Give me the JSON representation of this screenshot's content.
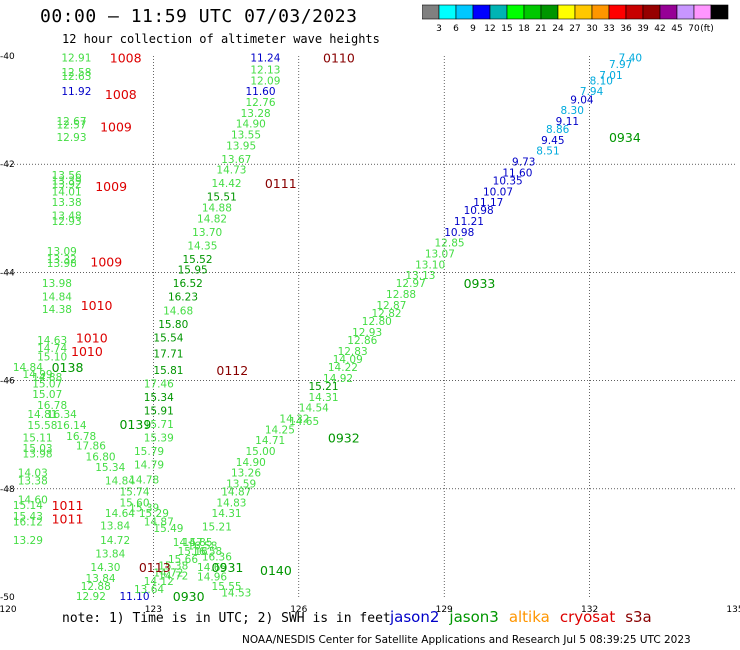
{
  "title": "00:00 – 11:59 UTC 07/03/2023",
  "subtitle": "12 hour collection of altimeter wave heights",
  "colorbar": {
    "colors": [
      "#808080",
      "#00ffff",
      "#00c8ff",
      "#0000ff",
      "#00b4b4",
      "#00ff00",
      "#00c800",
      "#009600",
      "#ffff00",
      "#ffc800",
      "#ff9600",
      "#ff0000",
      "#c80000",
      "#960000",
      "#960096",
      "#c896ff",
      "#ff96ff",
      "#000000"
    ],
    "labels": [
      "3",
      "6",
      "9",
      "12",
      "15",
      "18",
      "21",
      "24",
      "27",
      "30",
      "33",
      "36",
      "39",
      "42",
      "45",
      "70",
      "(ft)"
    ]
  },
  "map": {
    "lon_ticks": [
      120,
      123,
      126,
      129,
      132,
      135
    ],
    "lat_ticks": [
      -40,
      -42,
      -44,
      -46,
      -48,
      -50
    ],
    "lon_range": [
      120,
      135
    ],
    "lat_range": [
      -50,
      -40
    ],
    "grid": true
  },
  "palette": {
    "light": "#44dd44",
    "green": "#009600",
    "blue": "#0000c8",
    "cyan": "#00aadd",
    "red": "#dd0000",
    "maroon": "#880000"
  },
  "time_labels": [
    {
      "text": "1008",
      "lon": 122.1,
      "lat": -40.03,
      "c": "red"
    },
    {
      "text": "1008",
      "lon": 122.0,
      "lat": -40.7,
      "c": "red"
    },
    {
      "text": "1009",
      "lon": 121.9,
      "lat": -41.3,
      "c": "red"
    },
    {
      "text": "1009",
      "lon": 121.8,
      "lat": -42.4,
      "c": "red"
    },
    {
      "text": "1009",
      "lon": 121.7,
      "lat": -43.8,
      "c": "red"
    },
    {
      "text": "1010",
      "lon": 121.5,
      "lat": -44.6,
      "c": "red"
    },
    {
      "text": "1010",
      "lon": 121.4,
      "lat": -45.2,
      "c": "red"
    },
    {
      "text": "1010",
      "lon": 121.3,
      "lat": -45.45,
      "c": "red"
    },
    {
      "text": "1011",
      "lon": 120.9,
      "lat": -48.3,
      "c": "red"
    },
    {
      "text": "1011",
      "lon": 120.9,
      "lat": -48.55,
      "c": "red"
    },
    {
      "text": "0110",
      "lon": 126.5,
      "lat": -40.03,
      "c": "maroon"
    },
    {
      "text": "0111",
      "lon": 125.3,
      "lat": -42.35,
      "c": "maroon"
    },
    {
      "text": "0112",
      "lon": 124.3,
      "lat": -45.8,
      "c": "maroon"
    },
    {
      "text": "0113",
      "lon": 122.7,
      "lat": -49.45,
      "c": "maroon"
    },
    {
      "text": "0138",
      "lon": 120.9,
      "lat": -45.75,
      "c": "green"
    },
    {
      "text": "0139",
      "lon": 122.3,
      "lat": -46.8,
      "c": "green"
    },
    {
      "text": "0140",
      "lon": 125.2,
      "lat": -49.5,
      "c": "green"
    },
    {
      "text": "0931",
      "lon": 124.2,
      "lat": -49.45,
      "c": "green"
    },
    {
      "text": "0930",
      "lon": 123.4,
      "lat": -49.98,
      "c": "green"
    },
    {
      "text": "0932",
      "lon": 126.6,
      "lat": -47.05,
      "c": "green"
    },
    {
      "text": "0933",
      "lon": 129.4,
      "lat": -44.2,
      "c": "green"
    },
    {
      "text": "0934",
      "lon": 132.4,
      "lat": -41.5,
      "c": "green"
    }
  ],
  "swh_labels": [
    {
      "text": "12.91",
      "lon": 121.1,
      "lat": -40.03,
      "c": "light"
    },
    {
      "text": "12.58",
      "lon": 121.1,
      "lat": -40.3,
      "c": "light"
    },
    {
      "text": "12.63",
      "lon": 121.1,
      "lat": -40.37,
      "c": "light"
    },
    {
      "text": "11.92",
      "lon": 121.1,
      "lat": -40.65,
      "c": "blue"
    },
    {
      "text": "12.67",
      "lon": 121.0,
      "lat": -41.2,
      "c": "light"
    },
    {
      "text": "12.57",
      "lon": 121.0,
      "lat": -41.27,
      "c": "light"
    },
    {
      "text": "12.93",
      "lon": 121.0,
      "lat": -41.5,
      "c": "light"
    },
    {
      "text": "13.56",
      "lon": 120.9,
      "lat": -42.2,
      "c": "light"
    },
    {
      "text": "13.39",
      "lon": 120.9,
      "lat": -42.3,
      "c": "light"
    },
    {
      "text": "13.92",
      "lon": 120.9,
      "lat": -42.37,
      "c": "light"
    },
    {
      "text": "14.01",
      "lon": 120.9,
      "lat": -42.5,
      "c": "light"
    },
    {
      "text": "13.38",
      "lon": 120.9,
      "lat": -42.7,
      "c": "light"
    },
    {
      "text": "13.48",
      "lon": 120.9,
      "lat": -42.95,
      "c": "light"
    },
    {
      "text": "12.93",
      "lon": 120.9,
      "lat": -43.05,
      "c": "light"
    },
    {
      "text": "13.09",
      "lon": 120.8,
      "lat": -43.6,
      "c": "light"
    },
    {
      "text": "13.32",
      "lon": 120.8,
      "lat": -43.75,
      "c": "light"
    },
    {
      "text": "13.98",
      "lon": 120.8,
      "lat": -43.83,
      "c": "light"
    },
    {
      "text": "13.98",
      "lon": 120.7,
      "lat": -44.2,
      "c": "light"
    },
    {
      "text": "14.84",
      "lon": 120.7,
      "lat": -44.45,
      "c": "light"
    },
    {
      "text": "14.38",
      "lon": 120.7,
      "lat": -44.68,
      "c": "light"
    },
    {
      "text": "14.63",
      "lon": 120.6,
      "lat": -45.25,
      "c": "light"
    },
    {
      "text": "14.74",
      "lon": 120.6,
      "lat": -45.4,
      "c": "light"
    },
    {
      "text": "15.10",
      "lon": 120.6,
      "lat": -45.55,
      "c": "light"
    },
    {
      "text": "14.84",
      "lon": 120.1,
      "lat": -45.75,
      "c": "light"
    },
    {
      "text": "14.99",
      "lon": 120.3,
      "lat": -45.88,
      "c": "light"
    },
    {
      "text": "14.88",
      "lon": 120.5,
      "lat": -45.93,
      "c": "light"
    },
    {
      "text": "15.07",
      "lon": 120.5,
      "lat": -46.05,
      "c": "light"
    },
    {
      "text": "15.07",
      "lon": 120.5,
      "lat": -46.25,
      "c": "light"
    },
    {
      "text": "16.78",
      "lon": 120.6,
      "lat": -46.45,
      "c": "light"
    },
    {
      "text": "14.81",
      "lon": 120.4,
      "lat": -46.62,
      "c": "light"
    },
    {
      "text": "16.34",
      "lon": 120.8,
      "lat": -46.62,
      "c": "light"
    },
    {
      "text": "15.58",
      "lon": 120.4,
      "lat": -46.82,
      "c": "light"
    },
    {
      "text": "16.14",
      "lon": 121.0,
      "lat": -46.82,
      "c": "light"
    },
    {
      "text": "16.78",
      "lon": 121.2,
      "lat": -47.02,
      "c": "light"
    },
    {
      "text": "15.11",
      "lon": 120.3,
      "lat": -47.05,
      "c": "light"
    },
    {
      "text": "17.86",
      "lon": 121.4,
      "lat": -47.2,
      "c": "light"
    },
    {
      "text": "15.03",
      "lon": 120.3,
      "lat": -47.25,
      "c": "light"
    },
    {
      "text": "13.98",
      "lon": 120.3,
      "lat": -47.35,
      "c": "light"
    },
    {
      "text": "16.80",
      "lon": 121.6,
      "lat": -47.4,
      "c": "light"
    },
    {
      "text": "15.34",
      "lon": 121.8,
      "lat": -47.6,
      "c": "light"
    },
    {
      "text": "14.03",
      "lon": 120.2,
      "lat": -47.7,
      "c": "light"
    },
    {
      "text": "13.38",
      "lon": 120.2,
      "lat": -47.85,
      "c": "light"
    },
    {
      "text": "14.84",
      "lon": 122.0,
      "lat": -47.85,
      "c": "light"
    },
    {
      "text": "14.78",
      "lon": 122.5,
      "lat": -47.83,
      "c": "light"
    },
    {
      "text": "15.74",
      "lon": 122.3,
      "lat": -48.05,
      "c": "light"
    },
    {
      "text": "14.60",
      "lon": 120.2,
      "lat": -48.2,
      "c": "light"
    },
    {
      "text": "15.60",
      "lon": 122.3,
      "lat": -48.25,
      "c": "light"
    },
    {
      "text": "15.39",
      "lon": 122.5,
      "lat": -48.35,
      "c": "light"
    },
    {
      "text": "15.14",
      "lon": 120.1,
      "lat": -48.3,
      "c": "light"
    },
    {
      "text": "15.43",
      "lon": 120.1,
      "lat": -48.5,
      "c": "light"
    },
    {
      "text": "16.12",
      "lon": 120.1,
      "lat": -48.6,
      "c": "light"
    },
    {
      "text": "14.64",
      "lon": 122.0,
      "lat": -48.45,
      "c": "light"
    },
    {
      "text": "15.29",
      "lon": 122.7,
      "lat": -48.45,
      "c": "light"
    },
    {
      "text": "13.84",
      "lon": 121.9,
      "lat": -48.68,
      "c": "light"
    },
    {
      "text": "14.87",
      "lon": 122.8,
      "lat": -48.6,
      "c": "light"
    },
    {
      "text": "15.49",
      "lon": 123.0,
      "lat": -48.72,
      "c": "light"
    },
    {
      "text": "13.29",
      "lon": 120.1,
      "lat": -48.95,
      "c": "light"
    },
    {
      "text": "14.72",
      "lon": 121.9,
      "lat": -48.95,
      "c": "light"
    },
    {
      "text": "13.84",
      "lon": 121.8,
      "lat": -49.2,
      "c": "light"
    },
    {
      "text": "14.30",
      "lon": 121.7,
      "lat": -49.45,
      "c": "light"
    },
    {
      "text": "13.84",
      "lon": 121.6,
      "lat": -49.65,
      "c": "light"
    },
    {
      "text": "12.88",
      "lon": 121.5,
      "lat": -49.8,
      "c": "light"
    },
    {
      "text": "12.92",
      "lon": 121.4,
      "lat": -49.98,
      "c": "light"
    },
    {
      "text": "11.10",
      "lon": 122.3,
      "lat": -49.98,
      "c": "blue"
    },
    {
      "text": "13.64",
      "lon": 122.6,
      "lat": -49.85,
      "c": "light"
    },
    {
      "text": "14.12",
      "lon": 122.8,
      "lat": -49.7,
      "c": "light"
    },
    {
      "text": "14.72",
      "lon": 123.0,
      "lat": -49.55,
      "c": "light"
    },
    {
      "text": "15.38",
      "lon": 123.1,
      "lat": -49.42,
      "c": "light"
    },
    {
      "text": "15.66",
      "lon": 123.3,
      "lat": -49.3,
      "c": "light"
    },
    {
      "text": "15.16",
      "lon": 123.5,
      "lat": -49.15,
      "c": "light"
    },
    {
      "text": "14.57",
      "lon": 123.4,
      "lat": -48.98,
      "c": "light"
    },
    {
      "text": "14.85",
      "lon": 123.6,
      "lat": -48.98,
      "c": "light"
    },
    {
      "text": "16.58",
      "lon": 123.7,
      "lat": -49.05,
      "c": "light"
    },
    {
      "text": "16.58",
      "lon": 123.8,
      "lat": -49.15,
      "c": "light"
    },
    {
      "text": "16.36",
      "lon": 124.0,
      "lat": -49.25,
      "c": "light"
    },
    {
      "text": "15.21",
      "lon": 124.0,
      "lat": -48.7,
      "c": "light"
    },
    {
      "text": "14.31",
      "lon": 124.2,
      "lat": -48.45,
      "c": "light"
    },
    {
      "text": "14.83",
      "lon": 124.3,
      "lat": -48.25,
      "c": "light"
    },
    {
      "text": "14.87",
      "lon": 124.4,
      "lat": -48.05,
      "c": "light"
    },
    {
      "text": "13.59",
      "lon": 124.5,
      "lat": -47.9,
      "c": "light"
    },
    {
      "text": "13.26",
      "lon": 124.6,
      "lat": -47.7,
      "c": "light"
    },
    {
      "text": "14.90",
      "lon": 124.7,
      "lat": -47.5,
      "c": "light"
    },
    {
      "text": "15.00",
      "lon": 124.9,
      "lat": -47.3,
      "c": "light"
    },
    {
      "text": "14.71",
      "lon": 125.1,
      "lat": -47.1,
      "c": "light"
    },
    {
      "text": "14.25",
      "lon": 125.3,
      "lat": -46.9,
      "c": "light"
    },
    {
      "text": "14.32",
      "lon": 125.6,
      "lat": -46.7,
      "c": "light"
    },
    {
      "text": "14.65",
      "lon": 125.8,
      "lat": -46.75,
      "c": "light"
    },
    {
      "text": "14.54",
      "lon": 126.0,
      "lat": -46.5,
      "c": "light"
    },
    {
      "text": "14.31",
      "lon": 126.2,
      "lat": -46.3,
      "c": "light"
    },
    {
      "text": "15.21",
      "lon": 126.2,
      "lat": -46.1,
      "c": "green"
    },
    {
      "text": "14.92",
      "lon": 126.5,
      "lat": -45.95,
      "c": "light"
    },
    {
      "text": "14.22",
      "lon": 126.6,
      "lat": -45.75,
      "c": "light"
    },
    {
      "text": "14.09",
      "lon": 126.7,
      "lat": -45.6,
      "c": "light"
    },
    {
      "text": "12.83",
      "lon": 126.8,
      "lat": -45.45,
      "c": "light"
    },
    {
      "text": "12.86",
      "lon": 127.0,
      "lat": -45.25,
      "c": "light"
    },
    {
      "text": "12.93",
      "lon": 127.1,
      "lat": -45.1,
      "c": "light"
    },
    {
      "text": "12.80",
      "lon": 127.3,
      "lat": -44.9,
      "c": "light"
    },
    {
      "text": "12.82",
      "lon": 127.5,
      "lat": -44.75,
      "c": "light"
    },
    {
      "text": "12.87",
      "lon": 127.6,
      "lat": -44.6,
      "c": "light"
    },
    {
      "text": "12.88",
      "lon": 127.8,
      "lat": -44.4,
      "c": "light"
    },
    {
      "text": "12.97",
      "lon": 128.0,
      "lat": -44.2,
      "c": "light"
    },
    {
      "text": "13.13",
      "lon": 128.2,
      "lat": -44.05,
      "c": "light"
    },
    {
      "text": "13.10",
      "lon": 128.4,
      "lat": -43.85,
      "c": "light"
    },
    {
      "text": "13.07",
      "lon": 128.6,
      "lat": -43.65,
      "c": "light"
    },
    {
      "text": "12.85",
      "lon": 128.8,
      "lat": -43.45,
      "c": "light"
    },
    {
      "text": "10.98",
      "lon": 129.0,
      "lat": -43.25,
      "c": "blue"
    },
    {
      "text": "11.21",
      "lon": 129.2,
      "lat": -43.05,
      "c": "blue"
    },
    {
      "text": "10.98",
      "lon": 129.4,
      "lat": -42.85,
      "c": "blue"
    },
    {
      "text": "11.17",
      "lon": 129.6,
      "lat": -42.7,
      "c": "blue"
    },
    {
      "text": "10.07",
      "lon": 129.8,
      "lat": -42.5,
      "c": "blue"
    },
    {
      "text": "10.35",
      "lon": 130.0,
      "lat": -42.3,
      "c": "blue"
    },
    {
      "text": "11.60",
      "lon": 130.2,
      "lat": -42.15,
      "c": "blue"
    },
    {
      "text": "9.73",
      "lon": 130.4,
      "lat": -41.95,
      "c": "blue"
    },
    {
      "text": "8.51",
      "lon": 130.9,
      "lat": -41.75,
      "c": "cyan"
    },
    {
      "text": "9.45",
      "lon": 131.0,
      "lat": -41.55,
      "c": "blue"
    },
    {
      "text": "8.86",
      "lon": 131.1,
      "lat": -41.35,
      "c": "cyan"
    },
    {
      "text": "9.11",
      "lon": 131.3,
      "lat": -41.2,
      "c": "blue"
    },
    {
      "text": "8.30",
      "lon": 131.4,
      "lat": -41.0,
      "c": "cyan"
    },
    {
      "text": "9.04",
      "lon": 131.6,
      "lat": -40.8,
      "c": "blue"
    },
    {
      "text": "7.94",
      "lon": 131.8,
      "lat": -40.65,
      "c": "cyan"
    },
    {
      "text": "8.10",
      "lon": 132.0,
      "lat": -40.45,
      "c": "cyan"
    },
    {
      "text": "7.01",
      "lon": 132.2,
      "lat": -40.35,
      "c": "cyan"
    },
    {
      "text": "7.97",
      "lon": 132.4,
      "lat": -40.15,
      "c": "cyan"
    },
    {
      "text": "7.40",
      "lon": 132.6,
      "lat": -40.03,
      "c": "cyan"
    },
    {
      "text": "11.24",
      "lon": 125.0,
      "lat": -40.03,
      "c": "blue"
    },
    {
      "text": "12.13",
      "lon": 125.0,
      "lat": -40.25,
      "c": "light"
    },
    {
      "text": "12.09",
      "lon": 125.0,
      "lat": -40.45,
      "c": "light"
    },
    {
      "text": "11.60",
      "lon": 124.9,
      "lat": -40.65,
      "c": "blue"
    },
    {
      "text": "12.76",
      "lon": 124.9,
      "lat": -40.85,
      "c": "light"
    },
    {
      "text": "13.28",
      "lon": 124.8,
      "lat": -41.05,
      "c": "light"
    },
    {
      "text": "14.90",
      "lon": 124.7,
      "lat": -41.25,
      "c": "light"
    },
    {
      "text": "13.55",
      "lon": 124.6,
      "lat": -41.45,
      "c": "light"
    },
    {
      "text": "13.95",
      "lon": 124.5,
      "lat": -41.65,
      "c": "light"
    },
    {
      "text": "13.67",
      "lon": 124.4,
      "lat": -41.9,
      "c": "light"
    },
    {
      "text": "14.73",
      "lon": 124.3,
      "lat": -42.1,
      "c": "light"
    },
    {
      "text": "14.42",
      "lon": 124.2,
      "lat": -42.35,
      "c": "light"
    },
    {
      "text": "15.51",
      "lon": 124.1,
      "lat": -42.6,
      "c": "green"
    },
    {
      "text": "14.88",
      "lon": 124.0,
      "lat": -42.8,
      "c": "light"
    },
    {
      "text": "14.82",
      "lon": 123.9,
      "lat": -43.0,
      "c": "light"
    },
    {
      "text": "13.70",
      "lon": 123.8,
      "lat": -43.25,
      "c": "light"
    },
    {
      "text": "14.35",
      "lon": 123.7,
      "lat": -43.5,
      "c": "light"
    },
    {
      "text": "15.52",
      "lon": 123.6,
      "lat": -43.75,
      "c": "green"
    },
    {
      "text": "15.95",
      "lon": 123.5,
      "lat": -43.95,
      "c": "green"
    },
    {
      "text": "16.52",
      "lon": 123.4,
      "lat": -44.2,
      "c": "green"
    },
    {
      "text": "16.23",
      "lon": 123.3,
      "lat": -44.45,
      "c": "green"
    },
    {
      "text": "14.68",
      "lon": 123.2,
      "lat": -44.7,
      "c": "light"
    },
    {
      "text": "15.80",
      "lon": 123.1,
      "lat": -44.95,
      "c": "green"
    },
    {
      "text": "15.54",
      "lon": 123.0,
      "lat": -45.2,
      "c": "green"
    },
    {
      "text": "17.71",
      "lon": 123.0,
      "lat": -45.5,
      "c": "green"
    },
    {
      "text": "15.81",
      "lon": 123.0,
      "lat": -45.8,
      "c": "green"
    },
    {
      "text": "17.46",
      "lon": 122.8,
      "lat": -46.05,
      "c": "light"
    },
    {
      "text": "15.34",
      "lon": 122.8,
      "lat": -46.3,
      "c": "green"
    },
    {
      "text": "15.91",
      "lon": 122.8,
      "lat": -46.55,
      "c": "green"
    },
    {
      "text": "15.71",
      "lon": 122.8,
      "lat": -46.8,
      "c": "light"
    },
    {
      "text": "15.39",
      "lon": 122.8,
      "lat": -47.05,
      "c": "light"
    },
    {
      "text": "15.79",
      "lon": 122.6,
      "lat": -47.3,
      "c": "light"
    },
    {
      "text": "14.79",
      "lon": 122.6,
      "lat": -47.55,
      "c": "light"
    },
    {
      "text": "14.72",
      "lon": 123.1,
      "lat": -49.6,
      "c": "light"
    },
    {
      "text": "14.96",
      "lon": 123.9,
      "lat": -49.62,
      "c": "light"
    },
    {
      "text": "15.55",
      "lon": 124.2,
      "lat": -49.8,
      "c": "light"
    },
    {
      "text": "14.53",
      "lon": 124.4,
      "lat": -49.92,
      "c": "light"
    },
    {
      "text": "14.65",
      "lon": 123.9,
      "lat": -49.45,
      "c": "light"
    }
  ],
  "footer": {
    "note": "note: 1) Time is in UTC; 2) SWH is in feet",
    "credit": "NOAA/NESDIS Center for Satellite Applications and Research    Jul  5 08:39:25 UTC 2023",
    "legend": [
      {
        "name": "jason2",
        "color": "#0000c8"
      },
      {
        "name": "jason3",
        "color": "#009600"
      },
      {
        "name": "altika",
        "color": "#ff9600"
      },
      {
        "name": "cryosat",
        "color": "#dd0000"
      },
      {
        "name": "s3a",
        "color": "#880000"
      }
    ]
  }
}
